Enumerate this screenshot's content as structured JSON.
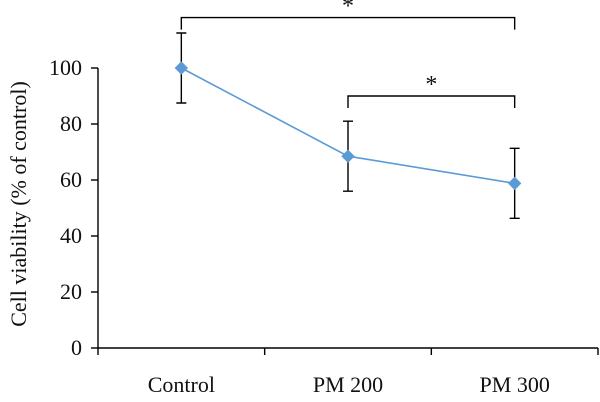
{
  "chart_data": {
    "type": "line",
    "categories": [
      "Control",
      "PM 200",
      "PM 300"
    ],
    "series": [
      {
        "values": [
          100,
          68.5,
          58.8
        ],
        "errors": [
          12.5,
          12.5,
          12.5
        ],
        "color": "#5B9BD5",
        "marker": "diamond"
      }
    ],
    "xlabel": "",
    "ylabel": "Cell viability (% of control)",
    "ylim": [
      0,
      100
    ],
    "yticks": [
      0,
      20,
      40,
      60,
      80,
      100
    ],
    "grid": false,
    "legend": "none",
    "annotations": [
      {
        "from": "Control",
        "to": "PM 300",
        "level": 118,
        "text": "*"
      },
      {
        "from": "PM 200",
        "to": "PM 300",
        "level": 90,
        "text": "*"
      }
    ]
  }
}
